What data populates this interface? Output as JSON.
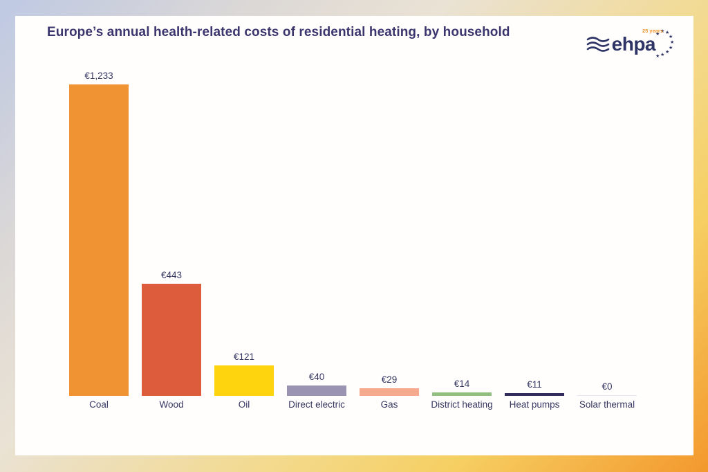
{
  "header": {
    "title": "Europe’s annual health-related costs of residential heating, by household"
  },
  "logo": {
    "brand": "ehpa",
    "badge": "25 years"
  },
  "chart_data": {
    "type": "bar",
    "title": "Europe’s annual health-related costs of residential heating, by household",
    "categories": [
      "Coal",
      "Wood",
      "Oil",
      "Direct electric",
      "Gas",
      "District heating",
      "Heat pumps",
      "Solar thermal"
    ],
    "values": [
      1233,
      443,
      121,
      40,
      29,
      14,
      11,
      0
    ],
    "value_labels": [
      "€1,233",
      "€443",
      "€121",
      "€40",
      "€29",
      "€14",
      "€11",
      "€0"
    ],
    "bar_colors": [
      "#F09433",
      "#DD5C3C",
      "#FDD40E",
      "#9A93B1",
      "#F5A98E",
      "#90BF80",
      "#312C5B",
      "#E6E4EE"
    ],
    "xlabel": "",
    "ylabel": "",
    "ylim": [
      0,
      1233
    ],
    "grid": false,
    "legend": false
  },
  "colors": {
    "title_text": "#3B356E",
    "label_text": "#353761",
    "card_background": "#FFFEFD",
    "frame_gradient_start": "#BEC9E3",
    "frame_gradient_mid": "#F3DA8E",
    "frame_gradient_end": "#F3982D",
    "logo_navy": "#2E3566",
    "logo_accent": "#F0932A"
  }
}
